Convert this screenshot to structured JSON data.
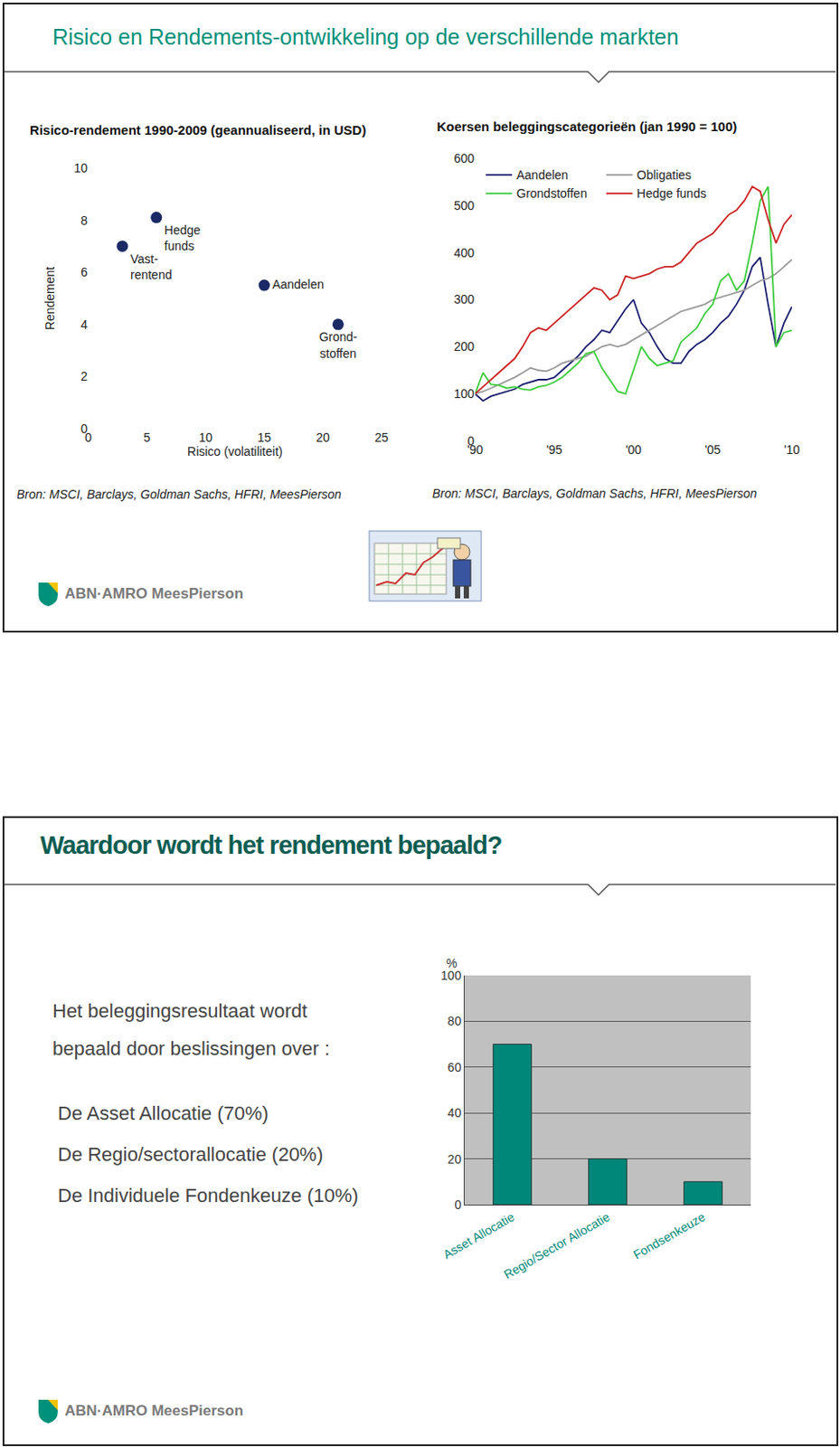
{
  "slides": [
    {
      "title": "Risico en Rendements-ontwikkeling op de verschillende markten",
      "logo": "ABN·AMRO MeesPierson"
    },
    {
      "title": "Waardoor wordt het rendement bepaald?",
      "intro": [
        "Het beleggingsresultaat wordt",
        "bepaald door beslissingen over :"
      ],
      "items": [
        "De Asset Allocatie (70%)",
        "De Regio/sectorallocatie (20%)",
        "De Individuele Fondenkeuze (10%)"
      ],
      "logo": "ABN·AMRO MeesPierson"
    }
  ],
  "chart_data": [
    {
      "type": "scatter",
      "title": "Risico-rendement 1990-2009 (geannualiseerd, in USD)",
      "xlabel": "Risico (volatiliteit)",
      "ylabel": "Rendement",
      "source": "Bron: MSCI, Barclays, Goldman Sachs, HFRI, MeesPierson",
      "labels": [
        "Vast-\nrentend",
        "Hedge\nfunds",
        "Aandelen",
        "Grond-\nstoffen"
      ],
      "x": [
        2.9,
        5.8,
        15.0,
        21.3
      ],
      "values": [
        7.0,
        8.1,
        5.5,
        4.0
      ],
      "color": "#1b2a66",
      "marker": "circle",
      "data_labels": true,
      "xlim": [
        0,
        25
      ],
      "xticks": [
        0,
        5,
        10,
        15,
        20,
        25
      ],
      "ylim": [
        0,
        10
      ],
      "yticks": [
        0,
        2,
        4,
        6,
        8,
        10
      ],
      "grid": false
    },
    {
      "type": "line",
      "title": "Koersen beleggingscategorieën (jan 1990 = 100)",
      "source": "Bron: MSCI, Barclays, Goldman Sachs, HFRI, MeesPierson",
      "x": [
        1990,
        1990.5,
        1991,
        1991.5,
        1992,
        1992.5,
        1993,
        1993.5,
        1994,
        1994.5,
        1995,
        1995.5,
        1996,
        1996.5,
        1997,
        1997.5,
        1998,
        1998.5,
        1999,
        1999.5,
        2000,
        2000.5,
        2001,
        2001.5,
        2002,
        2002.5,
        2003,
        2003.5,
        2004,
        2004.5,
        2005,
        2005.5,
        2006,
        2006.5,
        2007,
        2007.5,
        2008,
        2008.5,
        2009,
        2009.5,
        2010
      ],
      "series": [
        {
          "name": "Aandelen",
          "color": "#1b1f6e",
          "values": [
            100,
            85,
            95,
            100,
            105,
            110,
            120,
            125,
            130,
            130,
            135,
            150,
            165,
            180,
            200,
            215,
            235,
            230,
            255,
            280,
            300,
            250,
            230,
            200,
            175,
            165,
            165,
            190,
            205,
            215,
            230,
            250,
            265,
            290,
            320,
            370,
            390,
            290,
            200,
            250,
            285
          ]
        },
        {
          "name": "Obligaties",
          "color": "#9a9a9a",
          "values": [
            100,
            105,
            112,
            120,
            128,
            135,
            145,
            155,
            150,
            148,
            155,
            165,
            170,
            175,
            180,
            190,
            200,
            205,
            200,
            205,
            215,
            225,
            235,
            245,
            255,
            265,
            275,
            280,
            285,
            290,
            300,
            305,
            310,
            315,
            320,
            330,
            340,
            345,
            355,
            370,
            385
          ]
        },
        {
          "name": "Grondstoffen",
          "color": "#3ccc3c",
          "values": [
            100,
            145,
            120,
            118,
            112,
            115,
            110,
            108,
            115,
            118,
            125,
            135,
            150,
            165,
            185,
            190,
            155,
            130,
            105,
            100,
            150,
            200,
            175,
            160,
            165,
            170,
            210,
            225,
            240,
            270,
            290,
            340,
            355,
            320,
            340,
            420,
            510,
            540,
            200,
            230,
            235
          ]
        },
        {
          "name": "Hedge funds",
          "color": "#cc2222",
          "values": [
            100,
            115,
            130,
            145,
            160,
            175,
            200,
            230,
            240,
            235,
            250,
            265,
            280,
            295,
            310,
            325,
            320,
            300,
            310,
            350,
            345,
            350,
            355,
            365,
            370,
            370,
            380,
            400,
            420,
            430,
            440,
            460,
            480,
            490,
            510,
            540,
            530,
            470,
            420,
            460,
            480
          ]
        }
      ],
      "xlim": [
        1990,
        2010
      ],
      "xticks": [
        {
          "value": 1990,
          "label": "'90"
        },
        {
          "value": 1995,
          "label": "'95"
        },
        {
          "value": 2000,
          "label": "'00"
        },
        {
          "value": 2005,
          "label": "'05"
        },
        {
          "value": 2010,
          "label": "'10"
        }
      ],
      "ylim": [
        0,
        600
      ],
      "yticks": [
        0,
        100,
        200,
        300,
        400,
        500,
        600
      ],
      "legend": "upper left",
      "grid": false
    },
    {
      "type": "bar",
      "ylabel": "%",
      "categories": [
        "Asset Allocatie",
        "Regio/Sector Allocatie",
        "Fondsenkeuze"
      ],
      "values": [
        70,
        20,
        10
      ],
      "color": "#00877a",
      "ylim": [
        0,
        100
      ],
      "yticks": [
        0,
        20,
        40,
        60,
        80,
        100
      ],
      "grid": true
    }
  ]
}
